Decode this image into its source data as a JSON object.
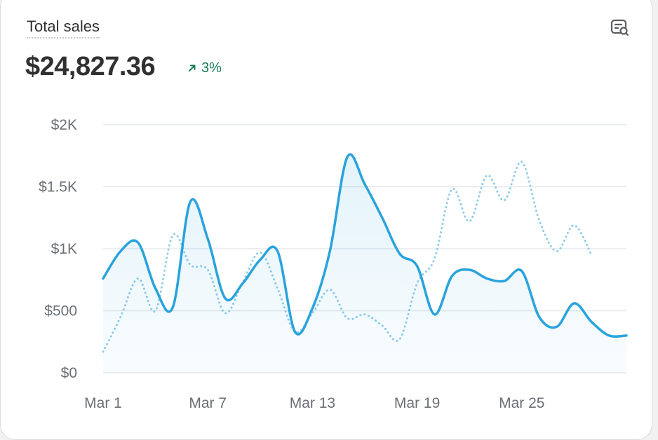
{
  "card": {
    "title": "Total sales",
    "total": "$24,827.36",
    "change": "3%",
    "change_icon": "arrow-up-right-icon",
    "report_icon": "search-report-icon",
    "change_color": "#1a7f58"
  },
  "chart_data": {
    "type": "line",
    "x_tick_labels": [
      "Mar 1",
      "Mar 7",
      "Mar 13",
      "Mar 19",
      "Mar 25"
    ],
    "y_tick_labels": [
      "$0",
      "$500",
      "$1K",
      "$1.5K",
      "$2K"
    ],
    "ylim": [
      0,
      2000
    ],
    "grid": true,
    "series": [
      {
        "style": "solid-area",
        "color": "#29a3dc",
        "x": [
          1,
          2,
          3,
          4,
          5,
          6,
          7,
          8,
          9,
          10,
          11,
          12,
          13,
          14,
          15,
          16,
          17,
          18,
          19,
          20,
          21,
          22,
          23,
          24,
          25,
          26,
          27,
          28,
          29,
          30,
          31
        ],
        "values": [
          760,
          980,
          1050,
          680,
          530,
          1380,
          1080,
          600,
          720,
          910,
          980,
          330,
          520,
          980,
          1740,
          1520,
          1250,
          960,
          860,
          470,
          780,
          830,
          760,
          740,
          820,
          450,
          370,
          560,
          410,
          300,
          300
        ]
      },
      {
        "style": "dotted",
        "color": "#8ccbea",
        "x": [
          1,
          2,
          3,
          4,
          5,
          6,
          7,
          8,
          9,
          10,
          11,
          12,
          13,
          14,
          15,
          16,
          17,
          18,
          19,
          20,
          21,
          22,
          23,
          24,
          25,
          26,
          27,
          28,
          29
        ],
        "values": [
          170,
          450,
          760,
          500,
          1110,
          870,
          830,
          480,
          730,
          970,
          680,
          330,
          480,
          670,
          440,
          470,
          380,
          270,
          720,
          920,
          1480,
          1220,
          1590,
          1390,
          1700,
          1230,
          980,
          1190,
          950
        ]
      }
    ]
  }
}
